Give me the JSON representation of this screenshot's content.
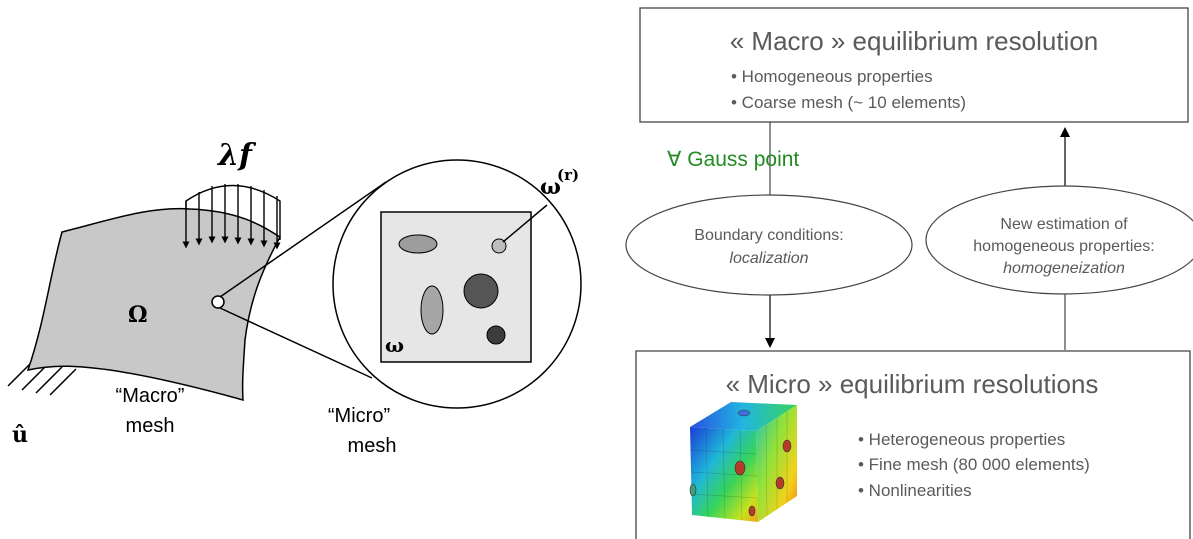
{
  "left": {
    "load_label": "λf",
    "domain_label": "Ω",
    "disp_label": "û",
    "macro_caption": [
      "“Macro”",
      "mesh"
    ],
    "micro_caption": [
      "“Micro”",
      "mesh"
    ],
    "rve_label": "ω",
    "inclusion_label": "ω",
    "inclusion_sup": "(r)"
  },
  "right": {
    "macro_box": {
      "title": "« Macro » equilibrium resolution",
      "bullets": [
        "• Homogeneous properties",
        "• Coarse mesh (~ 10  elements)"
      ]
    },
    "gauss_label": "∀ Gauss point",
    "left_ellipse": {
      "line1": "Boundary conditions:",
      "line2": "localization"
    },
    "right_ellipse": {
      "line1": "New estimation of",
      "line2": "homogeneous properties:",
      "line3": "homogeneization"
    },
    "micro_box": {
      "title": "« Micro » equilibrium resolutions",
      "bullets": [
        "• Heterogeneous properties",
        "• Fine mesh (80 000 elements)",
        "• Nonlinearities"
      ]
    }
  },
  "colors": {
    "gauss_text": "#228b22",
    "box_text": "#5a5a5a",
    "domain_fill": "#c8c8c8",
    "rve_fill": "#e6e6e6"
  }
}
